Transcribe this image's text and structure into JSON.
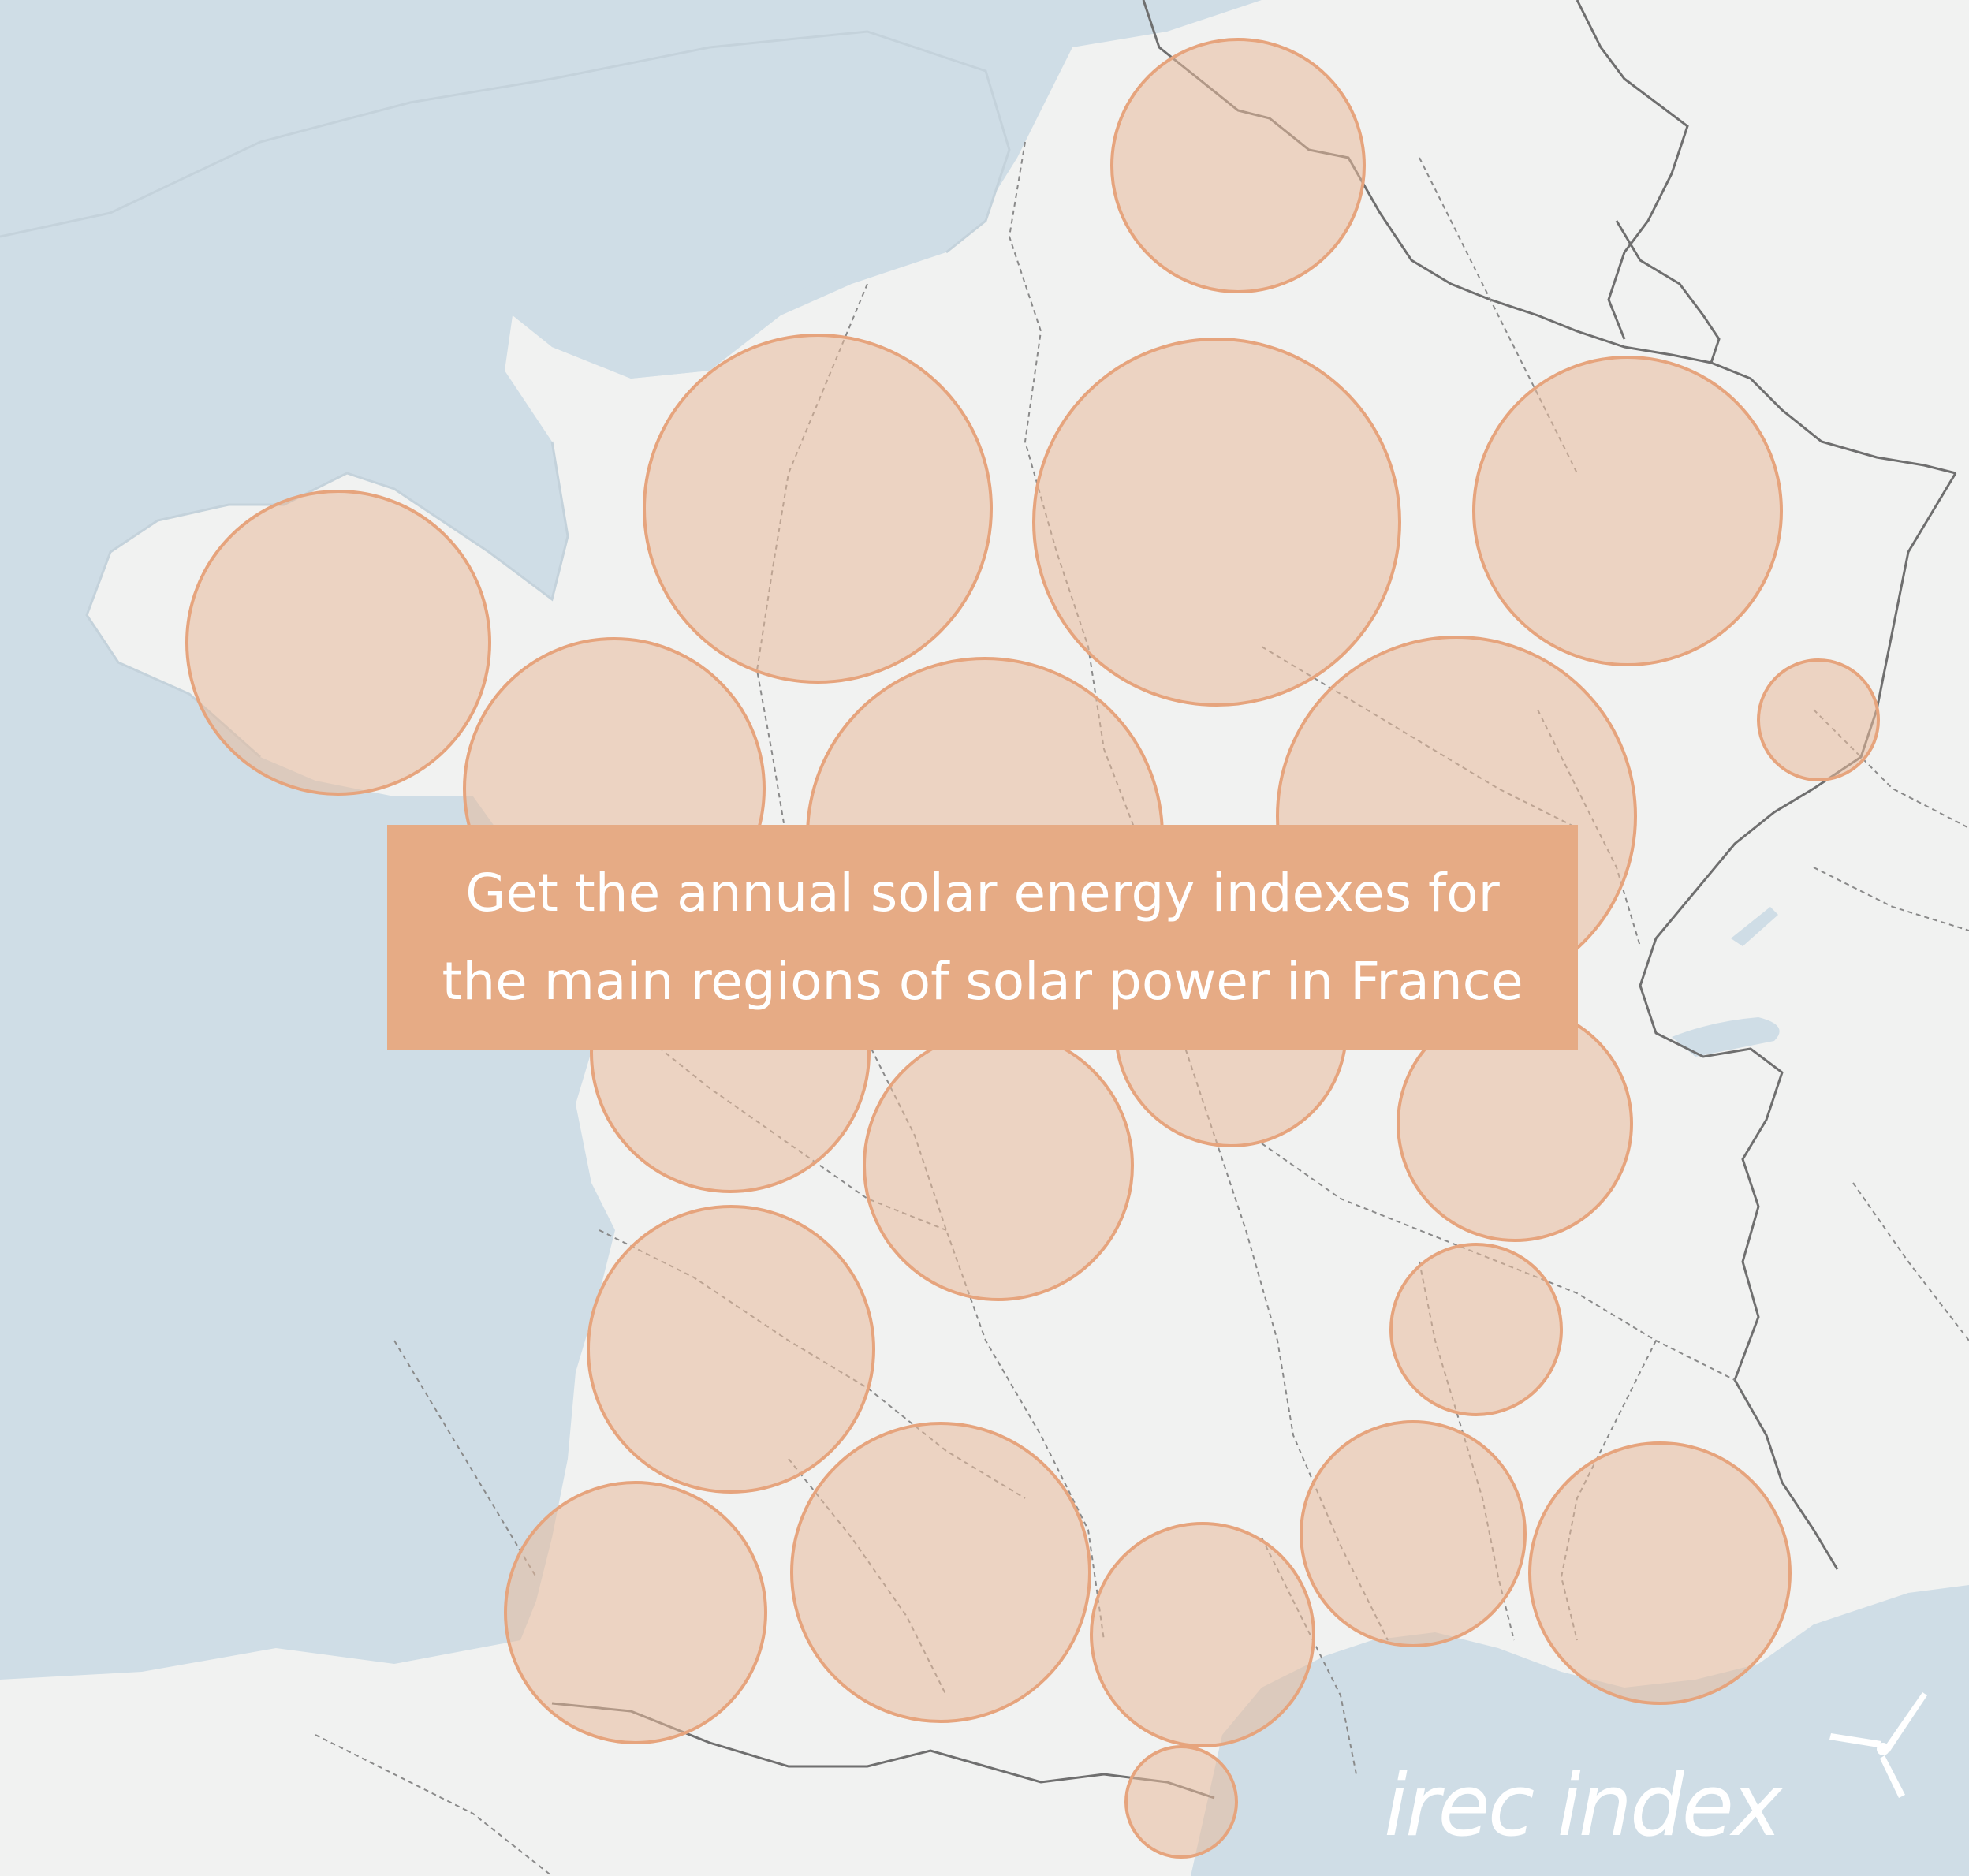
{
  "cta": {
    "line1": "Get the annual solar energy indexes for",
    "line2": "the main regions of solar power in France"
  },
  "brand": {
    "name": "irec index",
    "icon": "wind-turbine-icon"
  },
  "colors": {
    "sea": "#cfdde6",
    "land": "#f1f2f1",
    "circle_fill": "#e7b99b",
    "circle_stroke": "#e6a47d",
    "cta_background": "#e6ab85",
    "border": "#6f6f6f"
  }
}
